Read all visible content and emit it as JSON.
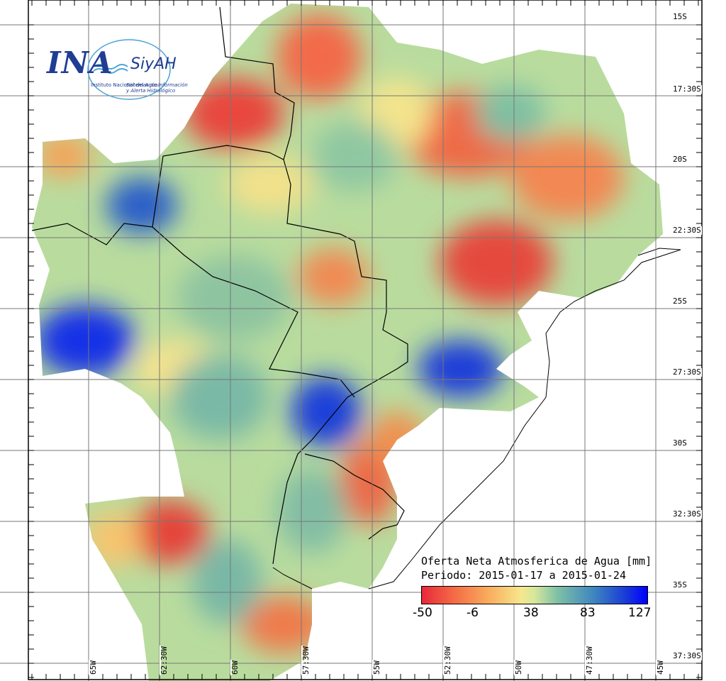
{
  "logo": {
    "org": "INA",
    "system": "SiyAH",
    "org_full": "Instituto Nacional del Agua",
    "system_full_1": "Sistemas de Información",
    "system_full_2": "y Alerta Hidrológico"
  },
  "legend": {
    "title": "Oferta Neta Atmosferica de Agua [mm]",
    "period": "Periodo: 2015-01-17 a 2015-01-24",
    "ticks": [
      "-50",
      "-6",
      "38",
      "83",
      "127"
    ]
  },
  "lat_labels": [
    "15S",
    "17:30S",
    "20S",
    "22:30S",
    "25S",
    "27:30S",
    "30S",
    "32:30S",
    "35S",
    "37:30S"
  ],
  "lon_labels": [
    "65W",
    "62:30W",
    "60W",
    "57:30W",
    "55W",
    "52:30W",
    "50W",
    "47:30W",
    "45W"
  ],
  "colors": {
    "scale_low": "#e8283a",
    "scale_mid": "#f6e78e",
    "scale_high": "#0000ff"
  }
}
